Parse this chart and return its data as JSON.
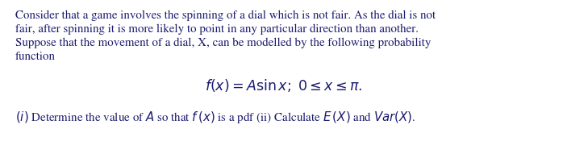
{
  "background_color": "#ffffff",
  "text_color": "#1a1a6e",
  "para_line1": "Consider that a game involves the spinning of a dial which is not fair. As the dial is not",
  "para_line2": "fair, after spinning it is more likely to point in any particular direction than another.",
  "para_line3": "Suppose that the movement of a dial, X, can be modelled by the following probability",
  "para_line4": "function",
  "formula": "$f(x) = A\\sin x;\\; 0 \\leq x \\leq \\pi.$",
  "question": "$(i)$ Determine the value of $A$ so that $f\\,(x)$ is a pdf (ii) Calculate $E\\,(X)$ and $Var(X)$.",
  "font_size_para": 10.8,
  "font_size_formula": 12.5,
  "font_size_question": 10.8,
  "fig_width": 7.03,
  "fig_height": 1.91,
  "dpi": 100
}
